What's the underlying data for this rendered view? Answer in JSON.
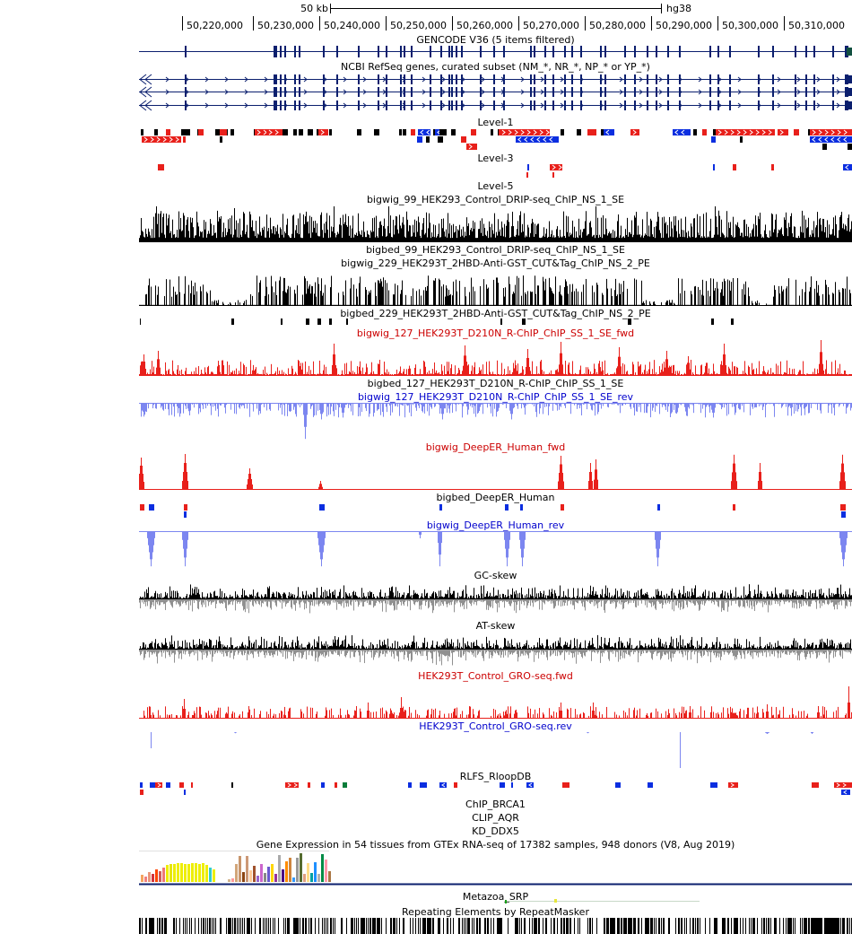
{
  "ruler": {
    "scale_label": "50 kb",
    "assembly": "hg38",
    "ticks": [
      "50,220,000",
      "50,230,000",
      "50,240,000",
      "50,250,000",
      "50,260,000",
      "50,270,000",
      "50,280,000",
      "50,290,000",
      "50,300,000",
      "50,310,000"
    ]
  },
  "tracks": [
    {
      "id": "gencode",
      "label": "GENCODE V36 (5 items filtered)",
      "label_color": "#000000",
      "kind": "gene"
    },
    {
      "id": "refseq",
      "label": "NCBI RefSeq genes, curated subset (NM_*, NR_*, NP_* or YP_*)",
      "label_color": "#000080",
      "kind": "gene3"
    },
    {
      "id": "level1",
      "label": "Level-1",
      "label_color": "#000000",
      "kind": "blocks"
    },
    {
      "id": "level3",
      "label": "Level-3",
      "label_color": "#000000",
      "kind": "blocks"
    },
    {
      "id": "level5",
      "label": "Level-5",
      "label_color": "#000000",
      "kind": "empty"
    },
    {
      "id": "bw99",
      "label": "bigwig_99_HEK293_Control_DRIP-seq_ChIP_NS_1_SE",
      "label_color": "#000000",
      "kind": "wig"
    },
    {
      "id": "bb99",
      "label": "bigbed_99_HEK293_Control_DRIP-seq_ChIP_NS_1_SE",
      "label_color": "#000000",
      "kind": "empty"
    },
    {
      "id": "bw229",
      "label": "bigwig_229_HEK293T_2HBD-Anti-GST_CUT&Tag_ChIP_NS_2_PE",
      "label_color": "#000000",
      "kind": "wig"
    },
    {
      "id": "bb229",
      "label": "bigbed_229_HEK293T_2HBD-Anti-GST_CUT&Tag_ChIP_NS_2_PE",
      "label_color": "#000000",
      "kind": "blocks"
    },
    {
      "id": "bw127f",
      "label": "bigwig_127_HEK293T_D210N_R-ChIP_ChIP_SS_1_SE_fwd",
      "label_color": "#cc0000",
      "kind": "wig"
    },
    {
      "id": "bb127",
      "label": "bigbed_127_HEK293T_D210N_R-ChIP_ChIP_SS_1_SE",
      "label_color": "#000000",
      "kind": "empty"
    },
    {
      "id": "bw127r",
      "label": "bigwig_127_HEK293T_D210N_R-ChIP_ChIP_SS_1_SE_rev",
      "label_color": "#0000cc",
      "kind": "wig"
    },
    {
      "id": "deeperf",
      "label": "bigwig_DeepER_Human_fwd",
      "label_color": "#cc0000",
      "kind": "wig"
    },
    {
      "id": "deeperbb",
      "label": "bigbed_DeepER_Human",
      "label_color": "#000000",
      "kind": "blocks"
    },
    {
      "id": "deeperr",
      "label": "bigwig_DeepER_Human_rev",
      "label_color": "#0000cc",
      "kind": "wig"
    },
    {
      "id": "gcskew",
      "label": "GC-skew",
      "label_color": "#000000",
      "kind": "wig"
    },
    {
      "id": "atskew",
      "label": "AT-skew",
      "label_color": "#000000",
      "kind": "wig"
    },
    {
      "id": "grof",
      "label": "HEK293T_Control_GRO-seq.fwd",
      "label_color": "#cc0000",
      "kind": "wig"
    },
    {
      "id": "gror",
      "label": "HEK293T_Control_GRO-seq.rev",
      "label_color": "#0000cc",
      "kind": "wig"
    },
    {
      "id": "rlfs",
      "label": "RLFS_RloopDB",
      "label_color": "#000000",
      "kind": "blocks"
    },
    {
      "id": "brca1",
      "label": "ChIP_BRCA1",
      "label_color": "#000000",
      "kind": "empty"
    },
    {
      "id": "clip",
      "label": "CLIP_AQR",
      "label_color": "#000000",
      "kind": "empty"
    },
    {
      "id": "kd",
      "label": "KD_DDX5",
      "label_color": "#000000",
      "kind": "empty"
    },
    {
      "id": "gtex",
      "label": "Gene Expression in 54 tissues from GTEx RNA-seq of 17382 samples, 948 donors (V8, Aug 2019)",
      "label_color": "#000000",
      "kind": "bars"
    },
    {
      "id": "srp",
      "label": "Metazoa_SRP",
      "label_color": "#000000",
      "kind": "srp"
    },
    {
      "id": "rmsk",
      "label": "Repeating Elements by RepeatMasker",
      "label_color": "#000000",
      "kind": "barcode"
    }
  ],
  "colors": {
    "gene": "#0b1f6e",
    "fwd": "#e8201b",
    "rev": "#0b2ee0",
    "rev_signal": "#7c86f0",
    "black": "#000000",
    "skew_neg": "#909090"
  }
}
